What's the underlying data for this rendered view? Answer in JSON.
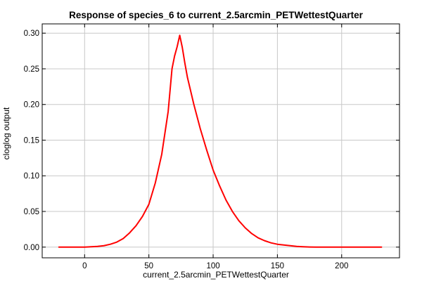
{
  "chart_data": {
    "type": "line",
    "title": "Response of species_6 to current_2.5arcmin_PETWettestQuarter",
    "xlabel": "current_2.5arcmin_PETWettestQuarter",
    "ylabel": "cloglog output",
    "xlim": [
      -33,
      245
    ],
    "ylim": [
      -0.015,
      0.313
    ],
    "x_ticks": [
      0,
      50,
      100,
      150,
      200
    ],
    "y_ticks": [
      0.0,
      0.05,
      0.1,
      0.15,
      0.2,
      0.25,
      0.3
    ],
    "x_tick_labels": [
      "0",
      "50",
      "100",
      "150",
      "200"
    ],
    "y_tick_labels": [
      "0.00",
      "0.05",
      "0.10",
      "0.15",
      "0.20",
      "0.25",
      "0.30"
    ],
    "grid": true,
    "series": [
      {
        "color": "#ff0000",
        "x": [
          -20,
          -10,
          0,
          5,
          10,
          15,
          20,
          25,
          30,
          35,
          40,
          45,
          50,
          55,
          60,
          65,
          68,
          70,
          72,
          74,
          76,
          78,
          80,
          85,
          90,
          95,
          100,
          105,
          110,
          115,
          120,
          125,
          130,
          135,
          140,
          145,
          150,
          155,
          160,
          165,
          170,
          175,
          180,
          190,
          200,
          210,
          220,
          231
        ],
        "y": [
          0.0,
          0.0,
          0.0,
          0.0005,
          0.001,
          0.002,
          0.004,
          0.007,
          0.012,
          0.02,
          0.03,
          0.043,
          0.06,
          0.09,
          0.13,
          0.19,
          0.25,
          0.268,
          0.281,
          0.297,
          0.28,
          0.258,
          0.238,
          0.2,
          0.166,
          0.136,
          0.108,
          0.086,
          0.066,
          0.05,
          0.037,
          0.027,
          0.019,
          0.013,
          0.009,
          0.006,
          0.004,
          0.003,
          0.002,
          0.001,
          0.0005,
          0.0002,
          0.0,
          0.0,
          0.0,
          0.0,
          0.0,
          0.0
        ]
      }
    ]
  }
}
